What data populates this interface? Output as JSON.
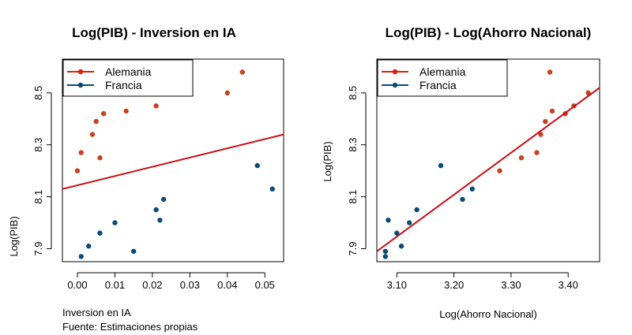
{
  "chart_data": [
    {
      "type": "scatter",
      "title": "Log(PIB) - Inversion en IA",
      "xlabel": "Inversion en IA",
      "ylabel": "Log(PIB)",
      "note": "Fuente: Estimaciones propias",
      "xlim": [
        -0.004,
        0.055
      ],
      "ylim": [
        7.85,
        8.63
      ],
      "xticks": [
        0.0,
        0.01,
        0.02,
        0.03,
        0.04,
        0.05
      ],
      "xtick_labels": [
        "0.00",
        "0.01",
        "0.02",
        "0.03",
        "0.04",
        "0.05"
      ],
      "yticks": [
        7.9,
        8.1,
        8.3,
        8.5
      ],
      "ytick_labels": [
        "7.9",
        "8.1",
        "8.3",
        "8.5"
      ],
      "legend": {
        "position": "top-left",
        "entries": [
          {
            "label": "Alemania",
            "color": "#dd1e0c"
          },
          {
            "label": "Francia",
            "color": "#0a4a78"
          }
        ]
      },
      "regression_line": {
        "x": [
          -0.004,
          0.055
        ],
        "y": [
          8.13,
          8.34
        ],
        "color": "#cc0a14"
      },
      "series": [
        {
          "name": "Alemania",
          "color": "#c8401e",
          "points": [
            [
              0.0,
              8.2
            ],
            [
              0.001,
              8.27
            ],
            [
              0.004,
              8.34
            ],
            [
              0.005,
              8.39
            ],
            [
              0.006,
              8.25
            ],
            [
              0.007,
              8.42
            ],
            [
              0.013,
              8.43
            ],
            [
              0.021,
              8.45
            ],
            [
              0.04,
              8.5
            ],
            [
              0.044,
              8.58
            ]
          ]
        },
        {
          "name": "Francia",
          "color": "#0a4a78",
          "points": [
            [
              0.001,
              7.87
            ],
            [
              0.003,
              7.91
            ],
            [
              0.006,
              7.96
            ],
            [
              0.01,
              8.0
            ],
            [
              0.015,
              7.89
            ],
            [
              0.021,
              8.05
            ],
            [
              0.022,
              8.01
            ],
            [
              0.023,
              8.09
            ],
            [
              0.048,
              8.22
            ],
            [
              0.052,
              8.13
            ]
          ]
        }
      ]
    },
    {
      "type": "scatter",
      "title": "Log(PIB) - Log(Ahorro Nacional)",
      "xlabel": "Log(Ahorro Nacional)",
      "ylabel": "Log(PIB)",
      "xlim": [
        3.065,
        3.455
      ],
      "ylim": [
        7.85,
        8.63
      ],
      "xticks": [
        3.1,
        3.2,
        3.3,
        3.4
      ],
      "xtick_labels": [
        "3.10",
        "3.20",
        "3.30",
        "3.40"
      ],
      "yticks": [
        7.9,
        8.1,
        8.3,
        8.5
      ],
      "ytick_labels": [
        "7.9",
        "8.1",
        "8.3",
        "8.5"
      ],
      "legend": {
        "position": "top-left",
        "entries": [
          {
            "label": "Alemania",
            "color": "#dd1e0c"
          },
          {
            "label": "Francia",
            "color": "#0a4a78"
          }
        ]
      },
      "regression_line": {
        "x": [
          3.065,
          3.455
        ],
        "y": [
          7.89,
          8.52
        ],
        "color": "#cc0a14"
      },
      "series": [
        {
          "name": "Alemania",
          "color": "#c8401e",
          "points": [
            [
              3.28,
              8.2
            ],
            [
              3.318,
              8.25
            ],
            [
              3.345,
              8.27
            ],
            [
              3.352,
              8.34
            ],
            [
              3.36,
              8.39
            ],
            [
              3.368,
              8.58
            ],
            [
              3.372,
              8.43
            ],
            [
              3.395,
              8.42
            ],
            [
              3.41,
              8.45
            ],
            [
              3.435,
              8.5
            ]
          ]
        },
        {
          "name": "Francia",
          "color": "#0a4a78",
          "points": [
            [
              3.08,
              7.87
            ],
            [
              3.08,
              7.89
            ],
            [
              3.085,
              8.01
            ],
            [
              3.1,
              7.96
            ],
            [
              3.108,
              7.91
            ],
            [
              3.122,
              8.0
            ],
            [
              3.135,
              8.05
            ],
            [
              3.177,
              8.22
            ],
            [
              3.215,
              8.09
            ],
            [
              3.232,
              8.13
            ]
          ]
        }
      ]
    }
  ]
}
